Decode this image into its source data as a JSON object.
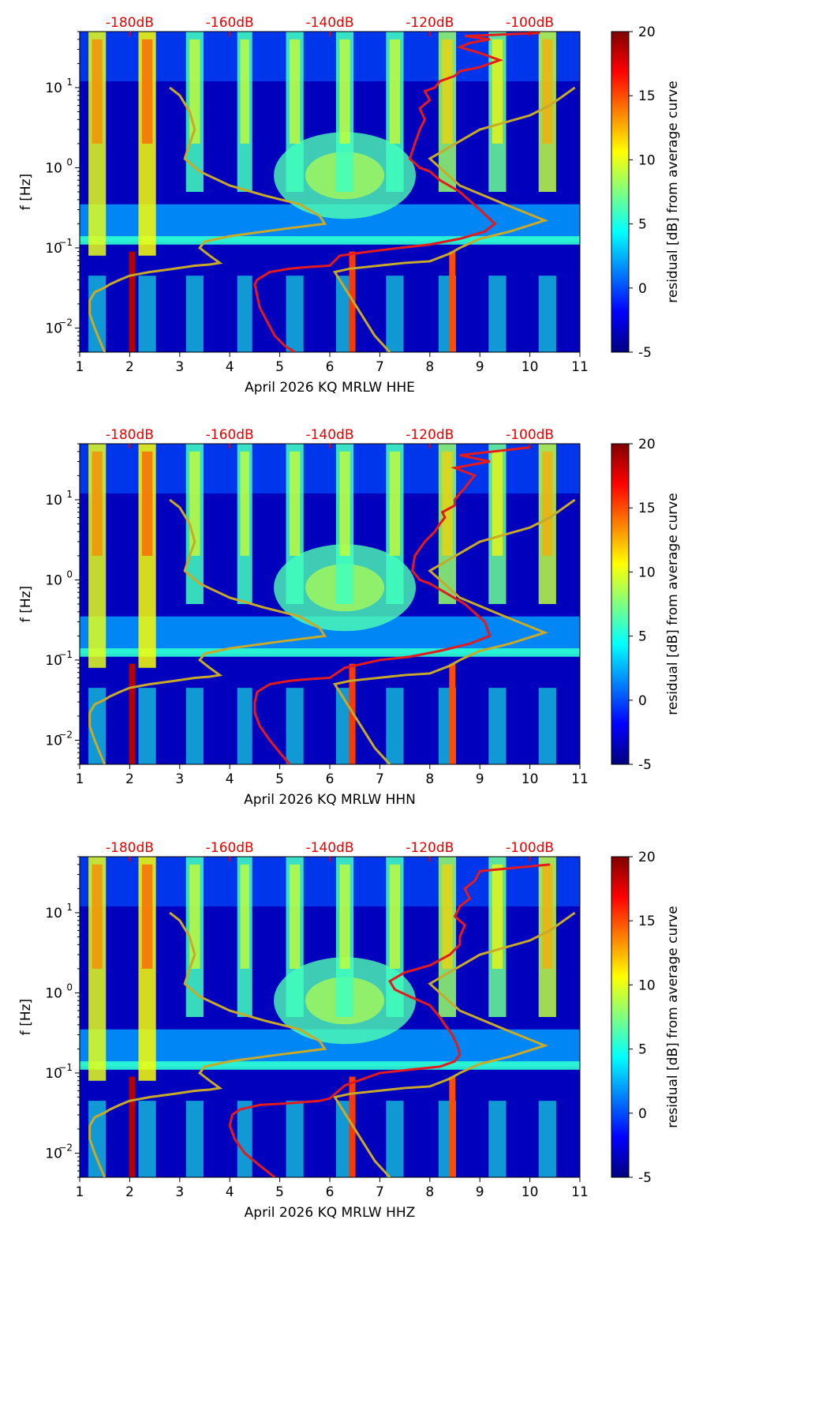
{
  "colors": {
    "noise_model": "#c8aa28",
    "average_curve": "#e41a1c",
    "db_label": "#e60000"
  },
  "colorbar": {
    "label": "residual [dB] from average curve",
    "ticks": [
      -5,
      0,
      5,
      10,
      15,
      20
    ],
    "range": [
      -5,
      20
    ],
    "colormap": "jet"
  },
  "chart_data": [
    {
      "type": "heatmap",
      "channel": "HHE",
      "xlabel": "April 2026 KQ MRLW  HHE",
      "ylabel": "f [Hz]",
      "xlim": [
        1,
        11
      ],
      "ylim": [
        0.005,
        50
      ],
      "x_ticks": [
        1,
        2,
        3,
        4,
        5,
        6,
        7,
        8,
        9,
        10,
        11
      ],
      "y_ticks": [
        {
          "value": 0.01,
          "base": "10",
          "exp": "−2"
        },
        {
          "value": 0.1,
          "base": "10",
          "exp": "−1"
        },
        {
          "value": 1,
          "base": "10",
          "exp": "0"
        },
        {
          "value": 10,
          "base": "10",
          "exp": "1"
        }
      ],
      "top_axis_labels": [
        "-180dB",
        "-160dB",
        "-140dB",
        "-120dB",
        "-100dB"
      ],
      "top_axis_positions": [
        2,
        4,
        6,
        8,
        10
      ],
      "noise_model": {
        "x": [
          1.5,
          1.4,
          1.3,
          1.2,
          1.2,
          1.3,
          1.5,
          1.6,
          1.8,
          2.0,
          2.4,
          2.9,
          3.3,
          3.6,
          3.8,
          3.6,
          3.4,
          3.5,
          4.0,
          5.0,
          5.9,
          5.8,
          5.4,
          4.7,
          4.0,
          3.4,
          3.1,
          3.2,
          3.3,
          3.2,
          3.0,
          2.8
        ],
        "f": [
          0.005,
          0.007,
          0.01,
          0.015,
          0.022,
          0.028,
          0.032,
          0.035,
          0.04,
          0.045,
          0.05,
          0.055,
          0.06,
          0.062,
          0.065,
          0.08,
          0.1,
          0.12,
          0.14,
          0.17,
          0.2,
          0.25,
          0.35,
          0.45,
          0.6,
          0.9,
          1.3,
          2.0,
          3.0,
          5.0,
          8.0,
          10.0
        ]
      },
      "noise_model_right": {
        "x": [
          7.2,
          6.9,
          6.5,
          6.1,
          6.4,
          7.5,
          8.0,
          8.4,
          8.6,
          9.0,
          9.6,
          10.3,
          9.5,
          8.6,
          8.0,
          9.0,
          10.0,
          10.4,
          10.9
        ],
        "f": [
          0.005,
          0.008,
          0.02,
          0.05,
          0.055,
          0.065,
          0.068,
          0.085,
          0.1,
          0.13,
          0.16,
          0.22,
          0.35,
          0.6,
          1.3,
          3.0,
          4.5,
          6.0,
          10.0
        ]
      },
      "average_curve": {
        "x": [
          5.3,
          5.1,
          4.9,
          4.75,
          4.6,
          4.55,
          4.5,
          4.55,
          4.8,
          5.2,
          5.6,
          6.0,
          6.2,
          6.8,
          7.4,
          8.0,
          8.6,
          9.1,
          9.3,
          9.0,
          8.6,
          8.2,
          8.0,
          7.8,
          7.6,
          7.7,
          7.8,
          7.9,
          7.8,
          8.0,
          7.9,
          8.1,
          8.2,
          8.5,
          8.6,
          9.0,
          9.4,
          9.0,
          8.6,
          8.8,
          9.2,
          8.7,
          10.2
        ],
        "f": [
          0.005,
          0.006,
          0.008,
          0.012,
          0.018,
          0.025,
          0.035,
          0.04,
          0.05,
          0.055,
          0.058,
          0.06,
          0.08,
          0.09,
          0.1,
          0.11,
          0.13,
          0.16,
          0.2,
          0.3,
          0.5,
          0.7,
          0.9,
          1.0,
          1.3,
          2.0,
          3.0,
          4.0,
          5.5,
          7.0,
          9.0,
          10.0,
          12.0,
          14.0,
          16.0,
          18.0,
          22.0,
          27.0,
          32.0,
          36.0,
          40.0,
          44.0,
          48.0
        ]
      },
      "bands": [
        {
          "x": 1.35,
          "w": 0.35,
          "f0": 0.08,
          "f1": 50,
          "v": 10
        },
        {
          "x": 2.35,
          "w": 0.35,
          "f0": 0.08,
          "f1": 50,
          "v": 11
        },
        {
          "x": 3.3,
          "w": 0.35,
          "f0": 0.5,
          "f1": 50,
          "v": 6
        },
        {
          "x": 4.3,
          "w": 0.3,
          "f0": 0.5,
          "f1": 50,
          "v": 6
        },
        {
          "x": 5.3,
          "w": 0.35,
          "f0": 0.5,
          "f1": 50,
          "v": 6
        },
        {
          "x": 6.3,
          "w": 0.35,
          "f0": 0.5,
          "f1": 50,
          "v": 6
        },
        {
          "x": 7.3,
          "w": 0.35,
          "f0": 0.5,
          "f1": 50,
          "v": 6
        },
        {
          "x": 8.35,
          "w": 0.35,
          "f0": 0.5,
          "f1": 50,
          "v": 8
        },
        {
          "x": 9.35,
          "w": 0.35,
          "f0": 0.5,
          "f1": 50,
          "v": 7
        },
        {
          "x": 10.35,
          "w": 0.35,
          "f0": 0.5,
          "f1": 50,
          "v": 9
        }
      ]
    },
    {
      "type": "heatmap",
      "channel": "HHN",
      "xlabel": "April 2026 KQ MRLW  HHN",
      "ylabel": "f [Hz]",
      "xlim": [
        1,
        11
      ],
      "ylim": [
        0.005,
        50
      ],
      "x_ticks": [
        1,
        2,
        3,
        4,
        5,
        6,
        7,
        8,
        9,
        10,
        11
      ],
      "y_ticks": [
        {
          "value": 0.01,
          "base": "10",
          "exp": "−2"
        },
        {
          "value": 0.1,
          "base": "10",
          "exp": "−1"
        },
        {
          "value": 1,
          "base": "10",
          "exp": "0"
        },
        {
          "value": 10,
          "base": "10",
          "exp": "1"
        }
      ],
      "top_axis_labels": [
        "-180dB",
        "-160dB",
        "-140dB",
        "-120dB",
        "-100dB"
      ],
      "top_axis_positions": [
        2,
        4,
        6,
        8,
        10
      ],
      "noise_model": {
        "x": [
          1.5,
          1.4,
          1.3,
          1.2,
          1.2,
          1.3,
          1.5,
          1.6,
          1.8,
          2.0,
          2.4,
          2.9,
          3.3,
          3.6,
          3.8,
          3.6,
          3.4,
          3.5,
          4.0,
          5.0,
          5.9,
          5.8,
          5.4,
          4.7,
          4.0,
          3.4,
          3.1,
          3.2,
          3.3,
          3.2,
          3.0,
          2.8
        ],
        "f": [
          0.005,
          0.007,
          0.01,
          0.015,
          0.022,
          0.028,
          0.032,
          0.035,
          0.04,
          0.045,
          0.05,
          0.055,
          0.06,
          0.062,
          0.065,
          0.08,
          0.1,
          0.12,
          0.14,
          0.17,
          0.2,
          0.25,
          0.35,
          0.45,
          0.6,
          0.9,
          1.3,
          2.0,
          3.0,
          5.0,
          8.0,
          10.0
        ]
      },
      "noise_model_right": {
        "x": [
          7.2,
          6.9,
          6.5,
          6.1,
          6.4,
          7.5,
          8.0,
          8.4,
          8.6,
          9.0,
          9.6,
          10.3,
          9.5,
          8.6,
          8.0,
          9.0,
          10.0,
          10.4,
          10.9
        ],
        "f": [
          0.005,
          0.008,
          0.02,
          0.05,
          0.055,
          0.065,
          0.068,
          0.085,
          0.1,
          0.13,
          0.16,
          0.22,
          0.35,
          0.6,
          1.3,
          3.0,
          4.5,
          6.0,
          10.0
        ]
      },
      "average_curve": {
        "x": [
          5.2,
          5.0,
          4.8,
          4.6,
          4.5,
          4.5,
          4.55,
          4.8,
          5.2,
          5.6,
          6.0,
          6.3,
          7.0,
          7.6,
          8.2,
          8.8,
          9.2,
          9.1,
          8.7,
          8.3,
          8.0,
          7.8,
          7.65,
          7.7,
          7.9,
          8.1,
          8.2,
          8.3,
          8.25,
          8.5,
          8.5,
          8.6,
          8.7,
          8.8,
          8.9,
          8.5,
          9.2,
          8.6,
          10.0
        ],
        "f": [
          0.005,
          0.007,
          0.01,
          0.015,
          0.022,
          0.03,
          0.04,
          0.05,
          0.055,
          0.058,
          0.06,
          0.08,
          0.1,
          0.11,
          0.13,
          0.16,
          0.2,
          0.3,
          0.5,
          0.7,
          0.9,
          1.0,
          1.3,
          2.0,
          3.0,
          4.0,
          5.0,
          6.0,
          7.0,
          8.5,
          10.0,
          12.0,
          14.0,
          17.0,
          20.0,
          25.0,
          30.0,
          36.0,
          45.0
        ]
      },
      "bands": [
        {
          "x": 1.35,
          "w": 0.35,
          "f0": 0.08,
          "f1": 50,
          "v": 10
        },
        {
          "x": 2.35,
          "w": 0.35,
          "f0": 0.08,
          "f1": 50,
          "v": 11
        },
        {
          "x": 3.3,
          "w": 0.35,
          "f0": 0.5,
          "f1": 50,
          "v": 6
        },
        {
          "x": 4.3,
          "w": 0.3,
          "f0": 0.5,
          "f1": 50,
          "v": 6
        },
        {
          "x": 5.3,
          "w": 0.35,
          "f0": 0.5,
          "f1": 50,
          "v": 6
        },
        {
          "x": 6.3,
          "w": 0.35,
          "f0": 0.5,
          "f1": 50,
          "v": 6
        },
        {
          "x": 7.3,
          "w": 0.35,
          "f0": 0.5,
          "f1": 50,
          "v": 6
        },
        {
          "x": 8.35,
          "w": 0.35,
          "f0": 0.5,
          "f1": 50,
          "v": 8
        },
        {
          "x": 9.35,
          "w": 0.35,
          "f0": 0.5,
          "f1": 50,
          "v": 7
        },
        {
          "x": 10.35,
          "w": 0.35,
          "f0": 0.5,
          "f1": 50,
          "v": 9
        }
      ]
    },
    {
      "type": "heatmap",
      "channel": "HHZ",
      "xlabel": "April 2026 KQ MRLW  HHZ",
      "ylabel": "f [Hz]",
      "xlim": [
        1,
        11
      ],
      "ylim": [
        0.005,
        50
      ],
      "x_ticks": [
        1,
        2,
        3,
        4,
        5,
        6,
        7,
        8,
        9,
        10,
        11
      ],
      "y_ticks": [
        {
          "value": 0.01,
          "base": "10",
          "exp": "−2"
        },
        {
          "value": 0.1,
          "base": "10",
          "exp": "−1"
        },
        {
          "value": 1,
          "base": "10",
          "exp": "0"
        },
        {
          "value": 10,
          "base": "10",
          "exp": "1"
        }
      ],
      "top_axis_labels": [
        "-180dB",
        "-160dB",
        "-140dB",
        "-120dB",
        "-100dB"
      ],
      "top_axis_positions": [
        2,
        4,
        6,
        8,
        10
      ],
      "noise_model": {
        "x": [
          1.5,
          1.4,
          1.3,
          1.2,
          1.2,
          1.3,
          1.5,
          1.6,
          1.8,
          2.0,
          2.4,
          2.9,
          3.3,
          3.6,
          3.8,
          3.6,
          3.4,
          3.5,
          4.0,
          5.0,
          5.9,
          5.8,
          5.4,
          4.7,
          4.0,
          3.4,
          3.1,
          3.2,
          3.3,
          3.2,
          3.0,
          2.8
        ],
        "f": [
          0.005,
          0.007,
          0.01,
          0.015,
          0.022,
          0.028,
          0.032,
          0.035,
          0.04,
          0.045,
          0.05,
          0.055,
          0.06,
          0.062,
          0.065,
          0.08,
          0.1,
          0.12,
          0.14,
          0.17,
          0.2,
          0.25,
          0.35,
          0.45,
          0.6,
          0.9,
          1.3,
          2.0,
          3.0,
          5.0,
          8.0,
          10.0
        ]
      },
      "noise_model_right": {
        "x": [
          7.2,
          6.9,
          6.5,
          6.1,
          6.4,
          7.5,
          8.0,
          8.4,
          8.6,
          9.0,
          9.6,
          10.3,
          9.5,
          8.6,
          8.0,
          9.0,
          10.0,
          10.4,
          10.9
        ],
        "f": [
          0.005,
          0.008,
          0.02,
          0.05,
          0.055,
          0.065,
          0.068,
          0.085,
          0.1,
          0.13,
          0.16,
          0.22,
          0.35,
          0.6,
          1.3,
          3.0,
          4.5,
          6.0,
          10.0
        ]
      },
      "average_curve": {
        "x": [
          4.9,
          4.6,
          4.3,
          4.1,
          4.0,
          4.05,
          4.2,
          4.6,
          5.2,
          5.8,
          6.0,
          6.3,
          7.0,
          7.6,
          8.2,
          8.5,
          8.6,
          8.55,
          8.45,
          8.3,
          8.2,
          8.0,
          7.6,
          7.3,
          7.2,
          7.5,
          8.0,
          8.4,
          8.6,
          8.6,
          8.7,
          8.5,
          8.6,
          8.8,
          8.7,
          8.9,
          9.0,
          10.4
        ],
        "f": [
          0.005,
          0.007,
          0.01,
          0.015,
          0.022,
          0.03,
          0.035,
          0.04,
          0.042,
          0.045,
          0.048,
          0.07,
          0.1,
          0.11,
          0.12,
          0.14,
          0.17,
          0.22,
          0.3,
          0.4,
          0.5,
          0.7,
          0.9,
          1.1,
          1.4,
          1.8,
          2.2,
          3.0,
          4.0,
          5.0,
          7.0,
          9.0,
          12.0,
          15.0,
          20.0,
          25.0,
          33.0,
          40.0
        ]
      },
      "bands": [
        {
          "x": 1.35,
          "w": 0.35,
          "f0": 0.08,
          "f1": 50,
          "v": 10
        },
        {
          "x": 2.35,
          "w": 0.35,
          "f0": 0.08,
          "f1": 50,
          "v": 11
        },
        {
          "x": 3.3,
          "w": 0.35,
          "f0": 0.5,
          "f1": 50,
          "v": 6
        },
        {
          "x": 4.3,
          "w": 0.3,
          "f0": 0.5,
          "f1": 50,
          "v": 6
        },
        {
          "x": 5.3,
          "w": 0.35,
          "f0": 0.5,
          "f1": 50,
          "v": 6
        },
        {
          "x": 6.3,
          "w": 0.35,
          "f0": 0.5,
          "f1": 50,
          "v": 6
        },
        {
          "x": 7.3,
          "w": 0.35,
          "f0": 0.5,
          "f1": 50,
          "v": 6
        },
        {
          "x": 8.35,
          "w": 0.35,
          "f0": 0.5,
          "f1": 50,
          "v": 8
        },
        {
          "x": 9.35,
          "w": 0.35,
          "f0": 0.5,
          "f1": 50,
          "v": 7
        },
        {
          "x": 10.35,
          "w": 0.35,
          "f0": 0.5,
          "f1": 50,
          "v": 9
        }
      ]
    }
  ]
}
